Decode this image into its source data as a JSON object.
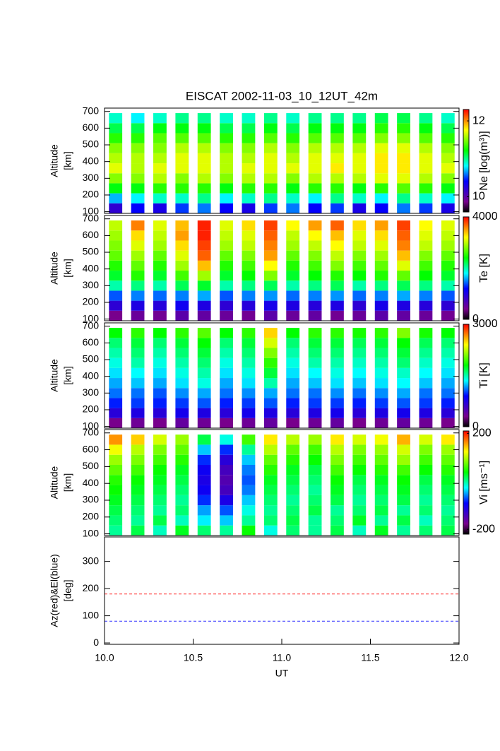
{
  "chart_data": [
    {
      "type": "heatmap",
      "title": "EISCAT 2002-11-03_10_12UT_42m",
      "ylabel": [
        "Altitude",
        "[km]"
      ],
      "colorbar_label": "Ne [log(m³)]",
      "colormap": "rainbow",
      "clim": [
        9.6,
        12.3
      ],
      "cticks": [
        10,
        12
      ],
      "ylim": [
        90,
        720
      ],
      "yticks": [
        100,
        200,
        300,
        400,
        500,
        600,
        700
      ],
      "x": [
        10.0625,
        10.1875,
        10.3125,
        10.4375,
        10.5625,
        10.6875,
        10.8125,
        10.9375,
        11.0625,
        11.1875,
        11.3125,
        11.4375,
        11.5625,
        11.6875,
        11.8125,
        11.9375
      ],
      "y": [
        120,
        180,
        240,
        300,
        360,
        420,
        480,
        540,
        600,
        660
      ],
      "values": [
        [
          10.2,
          10.4,
          10.3,
          10.5,
          10.6,
          10.4,
          10.3,
          10.5,
          10.6,
          10.4,
          10.5,
          10.3,
          10.4,
          10.6,
          10.5,
          10.3
        ],
        [
          10.7,
          10.8,
          10.9,
          10.9,
          11.0,
          10.8,
          10.9,
          11.0,
          10.9,
          10.8,
          11.0,
          10.9,
          10.8,
          11.0,
          10.9,
          10.8
        ],
        [
          11.2,
          11.2,
          11.3,
          11.3,
          11.3,
          11.2,
          11.3,
          11.3,
          11.2,
          11.3,
          11.3,
          11.2,
          11.3,
          11.4,
          11.3,
          11.2
        ],
        [
          11.5,
          11.5,
          11.6,
          11.5,
          11.6,
          11.5,
          11.6,
          11.6,
          11.5,
          11.6,
          11.6,
          11.6,
          11.7,
          11.7,
          11.6,
          11.5
        ],
        [
          11.7,
          11.6,
          11.7,
          11.7,
          11.7,
          11.6,
          11.7,
          11.7,
          11.7,
          11.7,
          11.8,
          11.7,
          11.8,
          11.8,
          11.7,
          11.7
        ],
        [
          11.6,
          11.6,
          11.6,
          11.7,
          11.7,
          11.6,
          11.6,
          11.7,
          11.6,
          11.7,
          11.7,
          11.7,
          11.8,
          11.8,
          11.7,
          11.6
        ],
        [
          11.5,
          11.5,
          11.5,
          11.6,
          11.6,
          11.5,
          11.5,
          11.6,
          11.5,
          11.6,
          11.6,
          11.6,
          11.7,
          11.7,
          11.6,
          11.5
        ],
        [
          11.3,
          11.3,
          11.4,
          11.4,
          11.4,
          11.3,
          11.3,
          11.4,
          11.3,
          11.4,
          11.4,
          11.4,
          11.5,
          11.5,
          11.4,
          11.3
        ],
        [
          11.1,
          11.1,
          11.2,
          11.2,
          11.2,
          11.1,
          11.1,
          11.2,
          11.1,
          11.2,
          11.2,
          11.2,
          11.3,
          11.3,
          11.2,
          11.1
        ],
        [
          10.9,
          10.8,
          10.9,
          11.0,
          11.0,
          10.9,
          10.9,
          11.0,
          10.9,
          11.0,
          11.0,
          11.0,
          11.1,
          11.1,
          11.0,
          10.9
        ]
      ]
    },
    {
      "type": "heatmap",
      "ylabel": [
        "Altitude",
        "[km]"
      ],
      "colorbar_label": "Te [K]",
      "colormap": "rainbow",
      "clim": [
        0,
        4000
      ],
      "cticks": [
        0,
        4000
      ],
      "ylim": [
        90,
        720
      ],
      "yticks": [
        100,
        200,
        300,
        400,
        500,
        600,
        700
      ],
      "x": [
        10.0625,
        10.1875,
        10.3125,
        10.4375,
        10.5625,
        10.6875,
        10.8125,
        10.9375,
        11.0625,
        11.1875,
        11.3125,
        11.4375,
        11.5625,
        11.6875,
        11.8125,
        11.9375
      ],
      "y": [
        120,
        180,
        240,
        300,
        360,
        420,
        480,
        540,
        600,
        660
      ],
      "values": [
        [
          400,
          500,
          450,
          600,
          550,
          500,
          450,
          600,
          500,
          550,
          450,
          500,
          600,
          550,
          500,
          450
        ],
        [
          900,
          1000,
          950,
          1100,
          1000,
          900,
          950,
          1050,
          1000,
          950,
          1000,
          900,
          1050,
          1000,
          950,
          900
        ],
        [
          1400,
          1500,
          1450,
          1500,
          1600,
          1400,
          1500,
          1550,
          1450,
          1500,
          1550,
          1450,
          1500,
          1600,
          1500,
          1400
        ],
        [
          2000,
          2100,
          2000,
          2200,
          2300,
          2000,
          2100,
          2200,
          2000,
          2100,
          2200,
          2000,
          2100,
          2200,
          2100,
          2000
        ],
        [
          2300,
          2500,
          2300,
          2600,
          2900,
          2300,
          2400,
          2800,
          2300,
          2400,
          2500,
          2400,
          2500,
          2700,
          2400,
          2300
        ],
        [
          2500,
          2700,
          2500,
          2900,
          3400,
          2500,
          2600,
          3200,
          2500,
          2600,
          2800,
          2600,
          2700,
          3100,
          2600,
          2500
        ],
        [
          2700,
          2900,
          2700,
          3100,
          3700,
          2700,
          2800,
          3500,
          2700,
          2800,
          3000,
          2800,
          2900,
          3400,
          2800,
          2700
        ],
        [
          2800,
          3100,
          2900,
          3300,
          3800,
          2900,
          3000,
          3600,
          2900,
          3000,
          3200,
          3000,
          3100,
          3600,
          3000,
          2900
        ],
        [
          2900,
          3300,
          3000,
          3500,
          3900,
          3000,
          3100,
          3700,
          3000,
          3200,
          3400,
          3100,
          3300,
          3700,
          3100,
          3000
        ],
        [
          3000,
          3600,
          3100,
          3400,
          3900,
          3100,
          3300,
          3800,
          3200,
          3500,
          3700,
          3300,
          3500,
          3800,
          3200,
          3100
        ]
      ]
    },
    {
      "type": "heatmap",
      "ylabel": [
        "Altitude",
        "[km]"
      ],
      "colorbar_label": "Ti [K]",
      "colormap": "rainbow",
      "clim": [
        0,
        3000
      ],
      "cticks": [
        0,
        3000
      ],
      "ylim": [
        90,
        720
      ],
      "yticks": [
        100,
        200,
        300,
        400,
        500,
        600,
        700
      ],
      "x": [
        10.0625,
        10.1875,
        10.3125,
        10.4375,
        10.5625,
        10.6875,
        10.8125,
        10.9375,
        11.0625,
        11.1875,
        11.3125,
        11.4375,
        11.5625,
        11.6875,
        11.8125,
        11.9375
      ],
      "y": [
        120,
        180,
        240,
        300,
        360,
        420,
        480,
        540,
        600,
        660
      ],
      "values": [
        [
          300,
          350,
          300,
          400,
          350,
          300,
          350,
          400,
          300,
          350,
          400,
          300,
          350,
          400,
          350,
          300
        ],
        [
          700,
          750,
          700,
          800,
          750,
          700,
          800,
          750,
          700,
          750,
          800,
          700,
          750,
          800,
          750,
          700
        ],
        [
          950,
          1000,
          950,
          1000,
          1050,
          950,
          1000,
          1050,
          950,
          1000,
          1000,
          950,
          1000,
          1050,
          1000,
          950
        ],
        [
          1100,
          1100,
          1050,
          1150,
          1200,
          1100,
          1150,
          1200,
          1100,
          1100,
          1150,
          1100,
          1150,
          1200,
          1100,
          1100
        ],
        [
          1200,
          1250,
          1200,
          1300,
          1400,
          1200,
          1300,
          1500,
          1200,
          1250,
          1300,
          1250,
          1300,
          1350,
          1250,
          1200
        ],
        [
          1300,
          1350,
          1300,
          1400,
          1500,
          1300,
          1400,
          1700,
          1300,
          1350,
          1400,
          1350,
          1400,
          1450,
          1350,
          1300
        ],
        [
          1400,
          1500,
          1400,
          1500,
          1600,
          1400,
          1500,
          1900,
          1400,
          1500,
          1500,
          1450,
          1500,
          1600,
          1450,
          1400
        ],
        [
          1500,
          1600,
          1500,
          1600,
          1700,
          1500,
          1600,
          2100,
          1500,
          1600,
          1600,
          1550,
          1600,
          1700,
          1550,
          1500
        ],
        [
          1600,
          1700,
          1600,
          1700,
          1800,
          1600,
          1700,
          2300,
          1600,
          1700,
          1700,
          1650,
          1700,
          1800,
          1650,
          1600
        ],
        [
          1800,
          1900,
          1800,
          1900,
          2000,
          1800,
          1900,
          2500,
          1800,
          1900,
          1900,
          1850,
          1900,
          2100,
          1850,
          1800
        ]
      ]
    },
    {
      "type": "heatmap",
      "ylabel": [
        "Altitude",
        "[km]"
      ],
      "colorbar_label": "Vi [ms⁻¹]",
      "colormap": "rainbow",
      "clim": [
        -220,
        210
      ],
      "cticks": [
        -200,
        200
      ],
      "ylim": [
        90,
        720
      ],
      "yticks": [
        100,
        200,
        300,
        400,
        500,
        600,
        700
      ],
      "x": [
        10.0625,
        10.1875,
        10.3125,
        10.4375,
        10.5625,
        10.6875,
        10.8125,
        10.9375,
        11.0625,
        11.1875,
        11.3125,
        11.4375,
        11.5625,
        11.6875,
        11.8125,
        11.9375
      ],
      "y": [
        120,
        180,
        240,
        300,
        360,
        420,
        480,
        540,
        600,
        660
      ],
      "values": [
        [
          0,
          20,
          -10,
          30,
          10,
          0,
          40,
          -20,
          10,
          0,
          20,
          -10,
          30,
          0,
          10,
          20
        ],
        [
          10,
          0,
          20,
          -10,
          -30,
          -40,
          0,
          10,
          20,
          0,
          10,
          30,
          0,
          20,
          -10,
          10
        ],
        [
          20,
          10,
          0,
          10,
          -50,
          -70,
          -20,
          0,
          10,
          20,
          0,
          10,
          20,
          0,
          10,
          0
        ],
        [
          30,
          20,
          10,
          0,
          -80,
          -110,
          -40,
          10,
          0,
          10,
          20,
          0,
          10,
          20,
          0,
          10
        ],
        [
          40,
          30,
          20,
          10,
          -100,
          -140,
          -60,
          20,
          10,
          0,
          30,
          10,
          20,
          30,
          10,
          20
        ],
        [
          50,
          40,
          30,
          20,
          -110,
          -150,
          -70,
          30,
          20,
          10,
          40,
          20,
          30,
          40,
          20,
          30
        ],
        [
          70,
          60,
          40,
          30,
          -100,
          -140,
          -60,
          50,
          30,
          20,
          60,
          40,
          50,
          60,
          40,
          50
        ],
        [
          90,
          80,
          60,
          50,
          -80,
          -120,
          -40,
          70,
          50,
          40,
          80,
          60,
          70,
          90,
          60,
          70
        ],
        [
          120,
          100,
          80,
          70,
          -40,
          -80,
          0,
          100,
          70,
          60,
          100,
          80,
          90,
          110,
          80,
          90
        ],
        [
          160,
          140,
          110,
          90,
          20,
          -20,
          60,
          130,
          100,
          90,
          130,
          110,
          120,
          150,
          110,
          130
        ]
      ]
    },
    {
      "type": "line",
      "ylabel": [
        "Az(red)&El(blue)",
        "[deg]"
      ],
      "ylim": [
        -5,
        390
      ],
      "yticks": [
        0,
        100,
        200,
        300
      ],
      "xlim": [
        10,
        12
      ],
      "xticks": [
        {
          "value": 10,
          "label": "10.0"
        },
        10.5,
        {
          "value": 11,
          "label": "11.0"
        },
        11.5,
        {
          "value": 12,
          "label": "12.0"
        }
      ],
      "xlabel": "UT",
      "dashed": true,
      "series": [
        {
          "color": "#ff3030",
          "x": [
            10,
            12
          ],
          "values": [
            180,
            180
          ]
        },
        {
          "color": "#3030ff",
          "x": [
            10,
            12
          ],
          "values": [
            80,
            80
          ]
        }
      ]
    }
  ]
}
